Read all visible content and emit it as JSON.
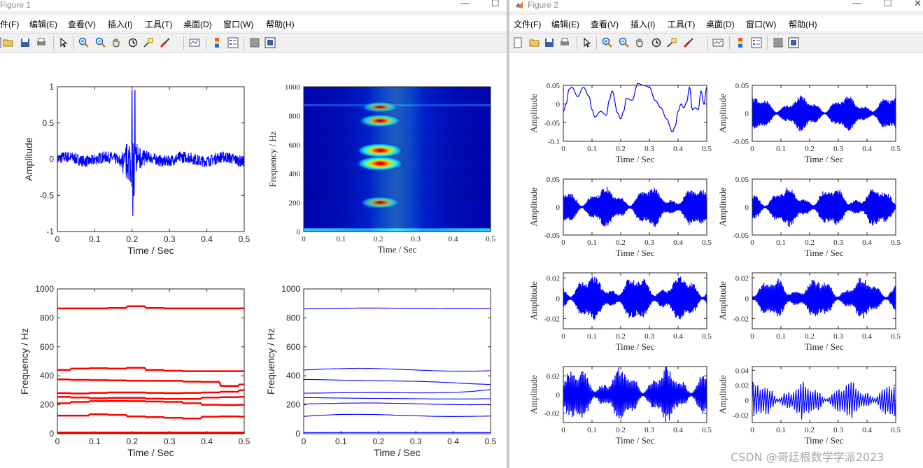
{
  "figure1": {
    "title": "Figure 1",
    "menu": [
      "件(F)",
      "编辑(E)",
      "查看(V)",
      "插入(I)",
      "工具(T)",
      "桌面(D)",
      "窗口(W)",
      "帮助(H)"
    ]
  },
  "figure2": {
    "title": "Figure 2",
    "menu": [
      "文件(F)",
      "编辑(E)",
      "查看(V)",
      "插入(I)",
      "工具(T)",
      "桌面(D)",
      "窗口(W)",
      "帮助(H)"
    ]
  },
  "toolbar_icons": [
    "new-file-icon",
    "open-folder-icon",
    "save-icon",
    "print-icon",
    "select-arrow-icon",
    "zoom-in-icon",
    "zoom-out-icon",
    "pan-hand-icon",
    "rotate-3d-icon",
    "data-cursor-icon",
    "brush-icon",
    "link-plot-icon",
    "colorbar-icon",
    "legend-icon",
    "hide-plot-tools-icon",
    "show-plot-tools-icon"
  ],
  "chart_data": [
    {
      "id": "fig1-signal",
      "type": "line",
      "series_color": "#0000ff",
      "xlabel": "Time / Sec",
      "ylabel": "Amplitude",
      "xlim": [
        0,
        0.5
      ],
      "ylim": [
        -1,
        1
      ],
      "xticks": [
        "0",
        "0.1",
        "0.2",
        "0.3",
        "0.4",
        "0.5"
      ],
      "yticks": [
        "-1",
        "-0.5",
        "0",
        "0.5",
        "1"
      ],
      "description_values": {
        "noise_amplitude": 0.08,
        "spike_time": 0.2,
        "spike_max": 0.95,
        "spike_min": -0.78
      }
    },
    {
      "id": "fig1-spectrogram",
      "type": "heatmap",
      "xlabel": "Time / Sec",
      "ylabel": "Frequency / Hz",
      "xlim": [
        0,
        0.5
      ],
      "ylim": [
        0,
        1000
      ],
      "xticks": [
        "0",
        "0.1",
        "0.2",
        "0.3",
        "0.4",
        "0.5"
      ],
      "yticks": [
        "0",
        "200",
        "400",
        "600",
        "800",
        "1000"
      ],
      "hotspots": [
        {
          "t": 0.205,
          "f": 470,
          "intensity": 1.0
        },
        {
          "t": 0.205,
          "f": 560,
          "intensity": 0.95
        },
        {
          "t": 0.205,
          "f": 765,
          "intensity": 0.7
        },
        {
          "t": 0.205,
          "f": 200,
          "intensity": 0.55
        },
        {
          "t": 0.205,
          "f": 860,
          "intensity": 0.4
        }
      ]
    },
    {
      "id": "fig1-ridges",
      "type": "line",
      "series_color": "#ff0000",
      "xlabel": "Time / Sec",
      "ylabel": "Frequency / Hz",
      "xlim": [
        0,
        0.5
      ],
      "ylim": [
        0,
        1000
      ],
      "xticks": [
        "0",
        "0.1",
        "0.2",
        "0.3",
        "0.4",
        "0.5"
      ],
      "yticks": [
        "0",
        "200",
        "400",
        "600",
        "800",
        "1000"
      ],
      "x": [
        0,
        0.05,
        0.1,
        0.15,
        0.2,
        0.25,
        0.3,
        0.35,
        0.4,
        0.45,
        0.5
      ],
      "series": [
        {
          "values": [
            865,
            865,
            865,
            868,
            880,
            868,
            865,
            865,
            865,
            865,
            865
          ]
        },
        {
          "values": [
            440,
            450,
            452,
            450,
            455,
            440,
            435,
            432,
            432,
            432,
            432
          ]
        },
        {
          "values": [
            375,
            372,
            370,
            368,
            366,
            365,
            365,
            360,
            358,
            330,
            340
          ]
        },
        {
          "values": [
            280,
            278,
            282,
            285,
            285,
            282,
            280,
            282,
            285,
            290,
            300
          ]
        },
        {
          "values": [
            255,
            250,
            245,
            248,
            248,
            242,
            240,
            240,
            250,
            252,
            255
          ]
        },
        {
          "values": [
            210,
            220,
            225,
            226,
            225,
            222,
            220,
            210,
            200,
            198,
            200
          ]
        },
        {
          "values": [
            125,
            125,
            135,
            130,
            120,
            115,
            110,
            105,
            118,
            120,
            118
          ]
        },
        {
          "values": [
            8,
            8,
            8,
            8,
            8,
            8,
            8,
            8,
            8,
            8,
            8
          ]
        }
      ]
    },
    {
      "id": "fig1-smoothed",
      "type": "line",
      "series_color": "#0000ff",
      "xlabel": "Time / Sec",
      "ylabel": "Frequency / Hz",
      "xlim": [
        0,
        0.5
      ],
      "ylim": [
        0,
        1000
      ],
      "xticks": [
        "0",
        "0.1",
        "0.2",
        "0.3",
        "0.4",
        "0.5"
      ],
      "yticks": [
        "0",
        "200",
        "400",
        "600",
        "800",
        "1000"
      ],
      "x": [
        0,
        0.05,
        0.1,
        0.15,
        0.2,
        0.25,
        0.3,
        0.35,
        0.4,
        0.45,
        0.5
      ],
      "series": [
        {
          "values": [
            862,
            864,
            866,
            868,
            868,
            867,
            866,
            865,
            864,
            863,
            864
          ]
        },
        {
          "values": [
            440,
            446,
            450,
            452,
            450,
            445,
            440,
            435,
            432,
            432,
            435
          ]
        },
        {
          "values": [
            375,
            373,
            370,
            368,
            366,
            364,
            362,
            358,
            352,
            345,
            340
          ]
        },
        {
          "values": [
            280,
            281,
            283,
            284,
            284,
            283,
            282,
            282,
            285,
            292,
            305
          ]
        },
        {
          "values": [
            250,
            248,
            246,
            245,
            244,
            243,
            242,
            240,
            240,
            240,
            242
          ]
        },
        {
          "values": [
            205,
            208,
            211,
            212,
            212,
            210,
            207,
            204,
            201,
            200,
            202
          ]
        },
        {
          "values": [
            120,
            128,
            133,
            134,
            132,
            128,
            124,
            120,
            119,
            120,
            122
          ]
        },
        {
          "values": [
            8,
            8,
            8,
            8,
            8,
            8,
            8,
            8,
            8,
            8,
            8
          ]
        }
      ]
    },
    {
      "id": "imf1",
      "type": "line",
      "series_color": "#0000ff",
      "xlabel": "Time / Sec",
      "ylabel": "Amplitude",
      "xlim": [
        0,
        0.5
      ],
      "ylim": [
        -0.1,
        0.05
      ],
      "xticks": [
        "0",
        "0.1",
        "0.2",
        "0.3",
        "0.4",
        "0.5"
      ],
      "yticks": [
        "-0.1",
        "-0.05",
        "0",
        "0.05"
      ],
      "x": [
        0,
        0.01,
        0.02,
        0.03,
        0.05,
        0.07,
        0.09,
        0.1,
        0.11,
        0.13,
        0.15,
        0.16,
        0.17,
        0.19,
        0.2,
        0.21,
        0.22,
        0.24,
        0.26,
        0.28,
        0.3,
        0.32,
        0.34,
        0.36,
        0.38,
        0.39,
        0.4,
        0.41,
        0.42,
        0.43,
        0.44,
        0.45,
        0.46,
        0.47,
        0.48,
        0.49,
        0.5
      ],
      "values": [
        -0.02,
        0.0,
        0.04,
        0.045,
        0.02,
        0.045,
        0.02,
        -0.015,
        -0.035,
        -0.02,
        -0.03,
        0.01,
        0.035,
        -0.025,
        -0.04,
        -0.02,
        0.015,
        0.01,
        0.055,
        0.05,
        0.045,
        0.01,
        -0.01,
        -0.04,
        -0.075,
        -0.06,
        -0.02,
        0.0,
        -0.01,
        0.005,
        0.045,
        -0.015,
        -0.01,
        -0.015,
        0.035,
        0.0,
        0.045
      ]
    },
    {
      "id": "imf2",
      "type": "line",
      "series_color": "#0000ff",
      "xlabel": "Time / Sec",
      "ylabel": "Amplitude",
      "xlim": [
        0,
        0.5
      ],
      "ylim": [
        -0.05,
        0.05
      ],
      "xticks": [
        "0",
        "0.1",
        "0.2",
        "0.3",
        "0.4",
        "0.5"
      ],
      "yticks": [
        "-0.05",
        "0",
        "0.05"
      ],
      "envelope": 0.03,
      "cycles": 140
    },
    {
      "id": "imf3",
      "type": "line",
      "series_color": "#0000ff",
      "xlabel": "Time / Sec",
      "ylabel": "Amplitude",
      "xlim": [
        0,
        0.5
      ],
      "ylim": [
        -0.05,
        0.05
      ],
      "xticks": [
        "0",
        "0.1",
        "0.2",
        "0.3",
        "0.4",
        "0.5"
      ],
      "yticks": [
        "-0.05",
        "0",
        "0.05"
      ],
      "envelope": 0.035,
      "cycles": 120
    },
    {
      "id": "imf4",
      "type": "line",
      "series_color": "#0000ff",
      "xlabel": "Time / Sec",
      "ylabel": "Amplitude",
      "xlim": [
        0,
        0.5
      ],
      "ylim": [
        -0.05,
        0.05
      ],
      "xticks": [
        "0",
        "0.1",
        "0.2",
        "0.3",
        "0.4",
        "0.5"
      ],
      "yticks": [
        "-0.05",
        "0",
        "0.05"
      ],
      "envelope": 0.035,
      "cycles": 105
    },
    {
      "id": "imf5",
      "type": "line",
      "series_color": "#0000ff",
      "xlabel": "Time / Sec",
      "ylabel": "Amplitude",
      "xlim": [
        0,
        0.5
      ],
      "ylim": [
        -0.03,
        0.025
      ],
      "xticks": [
        "0",
        "0.1",
        "0.2",
        "0.3",
        "0.4",
        "0.5"
      ],
      "yticks": [
        "-0.02",
        "0",
        "0.02"
      ],
      "envelope": 0.022,
      "cycles": 90
    },
    {
      "id": "imf6",
      "type": "line",
      "series_color": "#0000ff",
      "xlabel": "Time / Sec",
      "ylabel": "Amplitude",
      "xlim": [
        0,
        0.5
      ],
      "ylim": [
        -0.03,
        0.025
      ],
      "xticks": [
        "0",
        "0.1",
        "0.2",
        "0.3",
        "0.4",
        "0.5"
      ],
      "yticks": [
        "-0.02",
        "0",
        "0.02"
      ],
      "envelope": 0.02,
      "cycles": 70
    },
    {
      "id": "imf7",
      "type": "line",
      "series_color": "#0000ff",
      "xlabel": "Time / Sec",
      "ylabel": "Amplitude",
      "xlim": [
        0,
        0.5
      ],
      "ylim": [
        -0.03,
        0.03
      ],
      "xticks": [
        "0",
        "0.1",
        "0.2",
        "0.3",
        "0.4",
        "0.5"
      ],
      "yticks": [
        "-0.02",
        "0",
        "0.02"
      ],
      "envelope": 0.028,
      "cycles": 60
    },
    {
      "id": "imf8",
      "type": "line",
      "series_color": "#0000ff",
      "xlabel": "Time / Sec",
      "ylabel": "Amplitude",
      "xlim": [
        0,
        0.5
      ],
      "ylim": [
        -0.03,
        0.045
      ],
      "xticks": [
        "0",
        "0.1",
        "0.2",
        "0.3",
        "0.4",
        "0.5"
      ],
      "yticks": [
        "-0.02",
        "0",
        "0.02",
        "0.04"
      ],
      "envelope": 0.025,
      "cycles": 30
    }
  ],
  "watermark": "CSDN @哥廷根数学学派2023"
}
